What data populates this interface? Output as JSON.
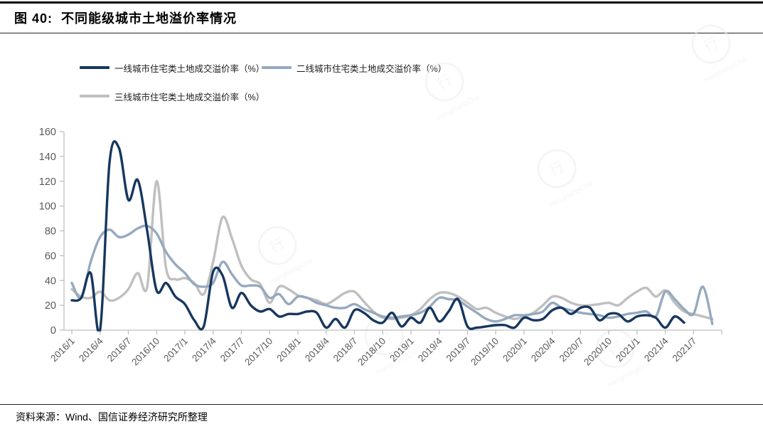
{
  "page": {
    "title": "图 40:  不同能级城市土地溢价率情况",
    "source": "资料来源：Wind、国信证券经济研究所整理"
  },
  "legend": [
    {
      "label": "一线城市住宅类土地成交溢价率（%）",
      "color": "#17375E"
    },
    {
      "label": "二线城市住宅类土地成交溢价率（%）",
      "color": "#95A9BF"
    },
    {
      "label": "三线城市住宅类土地成交溢价率（%）",
      "color": "#BFBFBF"
    }
  ],
  "watermark": {
    "text": "行行查",
    "subtext": "HangHangCha",
    "color": "#ededed"
  },
  "chart_data": {
    "type": "line",
    "title": "不同能级城市土地溢价率情况",
    "smooth": true,
    "grid": false,
    "legend_position": "top-left",
    "ylim": [
      0,
      160
    ],
    "y_ticks": [
      0,
      20,
      40,
      60,
      80,
      100,
      120,
      140,
      160
    ],
    "axis_color": "#BFBFBF",
    "tick_label_color": "#595959",
    "x_label_every_n_months": 3,
    "x_tick_labels": [
      "2016/1",
      "2016/4",
      "2016/7",
      "2016/10",
      "2017/1",
      "2017/4",
      "2017/7",
      "2017/10",
      "2018/1",
      "2018/4",
      "2018/7",
      "2018/10",
      "2019/1",
      "2019/4",
      "2019/7",
      "2019/10",
      "2020/1",
      "2020/4",
      "2020/7",
      "2020/10",
      "2021/1",
      "2021/4",
      "2021/7"
    ],
    "categories": [
      "2016/1",
      "2016/2",
      "2016/3",
      "2016/4",
      "2016/5",
      "2016/6",
      "2016/7",
      "2016/8",
      "2016/9",
      "2016/10",
      "2016/11",
      "2016/12",
      "2017/1",
      "2017/2",
      "2017/3",
      "2017/4",
      "2017/5",
      "2017/6",
      "2017/7",
      "2017/8",
      "2017/9",
      "2017/10",
      "2017/11",
      "2017/12",
      "2018/1",
      "2018/2",
      "2018/3",
      "2018/4",
      "2018/5",
      "2018/6",
      "2018/7",
      "2018/8",
      "2018/9",
      "2018/10",
      "2018/11",
      "2018/12",
      "2019/1",
      "2019/2",
      "2019/3",
      "2019/4",
      "2019/5",
      "2019/6",
      "2019/7",
      "2019/8",
      "2019/9",
      "2019/10",
      "2019/11",
      "2019/12",
      "2020/1",
      "2020/2",
      "2020/3",
      "2020/4",
      "2020/5",
      "2020/6",
      "2020/7",
      "2020/8",
      "2020/9",
      "2020/10",
      "2020/11",
      "2020/12",
      "2021/1",
      "2021/2",
      "2021/3",
      "2021/4",
      "2021/5",
      "2021/6",
      "2021/7",
      "2021/8",
      "2021/9"
    ],
    "series": [
      {
        "name": "三线城市住宅类土地成交溢价率（%）",
        "color": "#BFBFBF",
        "values": [
          33,
          27,
          26,
          31,
          24,
          26,
          33,
          46,
          35,
          120,
          50,
          41,
          42,
          38,
          29,
          55,
          91,
          74,
          52,
          41,
          37,
          22,
          35,
          33,
          28,
          26,
          24,
          21,
          25,
          30,
          31,
          23,
          15,
          10,
          9,
          10,
          12,
          17,
          25,
          30,
          30,
          27,
          22,
          17,
          18,
          14,
          11,
          9,
          11,
          14,
          20,
          27,
          26,
          22,
          20,
          20,
          21,
          22,
          20,
          26,
          31,
          34,
          27,
          32,
          22,
          15,
          13,
          11,
          9
        ]
      },
      {
        "name": "二线城市住宅类土地成交溢价率（%）",
        "color": "#95A9BF",
        "values": [
          38,
          26,
          55,
          75,
          81,
          75,
          77,
          82,
          84,
          78,
          63,
          53,
          46,
          37,
          35,
          38,
          55,
          45,
          36,
          36,
          35,
          26,
          29,
          21,
          27,
          26,
          22,
          20,
          18,
          18,
          21,
          17,
          14,
          11,
          10,
          11,
          12,
          14,
          19,
          26,
          25,
          24,
          19,
          14,
          9,
          7,
          9,
          12,
          12,
          13,
          15,
          22,
          18,
          16,
          14,
          13,
          12,
          10,
          11,
          13,
          14,
          15,
          11,
          31,
          25,
          17,
          13,
          35,
          5
        ]
      },
      {
        "name": "一线城市住宅类土地成交溢价率（%）",
        "color": "#17375E",
        "values": [
          24,
          26,
          46,
          0,
          135,
          147,
          105,
          121,
          80,
          32,
          38,
          27,
          21,
          8,
          3,
          47,
          44,
          18,
          30,
          20,
          15,
          17,
          11,
          13,
          13,
          15,
          14,
          2,
          9,
          2,
          16,
          14,
          8,
          6,
          14,
          3,
          10,
          6,
          18,
          7,
          15,
          25,
          3,
          2,
          3,
          4,
          4,
          2,
          10,
          8,
          9,
          16,
          18,
          13,
          18,
          18,
          8,
          13,
          13,
          7,
          11,
          12,
          10,
          2,
          11,
          6,
          null,
          null,
          null
        ]
      }
    ]
  }
}
